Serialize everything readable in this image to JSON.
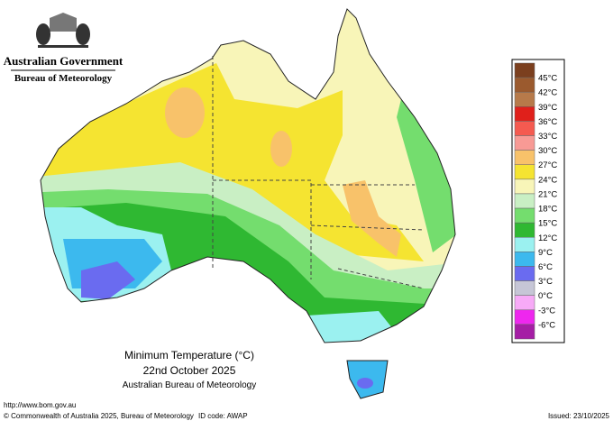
{
  "header": {
    "government": "Australian Government",
    "agency": "Bureau of Meteorology"
  },
  "legend": {
    "colors": [
      "#7b3f1e",
      "#9b5a2e",
      "#b77a4a",
      "#e0201b",
      "#f55a50",
      "#f89a95",
      "#f8c26a",
      "#f5e431",
      "#f8f5b8",
      "#c9efc4",
      "#74dd6e",
      "#2fb832",
      "#9bf1f0",
      "#3cb9ee",
      "#6a6bf0",
      "#c6c6d6",
      "#f7aaf7",
      "#ee27ee",
      "#a51ea5"
    ],
    "labels": [
      "45°C",
      "42°C",
      "39°C",
      "36°C",
      "33°C",
      "30°C",
      "27°C",
      "24°C",
      "21°C",
      "18°C",
      "15°C",
      "12°C",
      "9°C",
      "6°C",
      "3°C",
      "0°C",
      "-3°C",
      "-6°C"
    ]
  },
  "title": {
    "line1": "Minimum Temperature (°C)",
    "line2": "22nd October 2025",
    "line3": "Australian Bureau of Meteorology"
  },
  "footer": {
    "url": "http://www.bom.gov.au",
    "copyright": "© Commonwealth of Australia 2025, Bureau of Meteorology",
    "id_code": "ID code: AWAP",
    "issued": "Issued: 23/10/2025"
  }
}
